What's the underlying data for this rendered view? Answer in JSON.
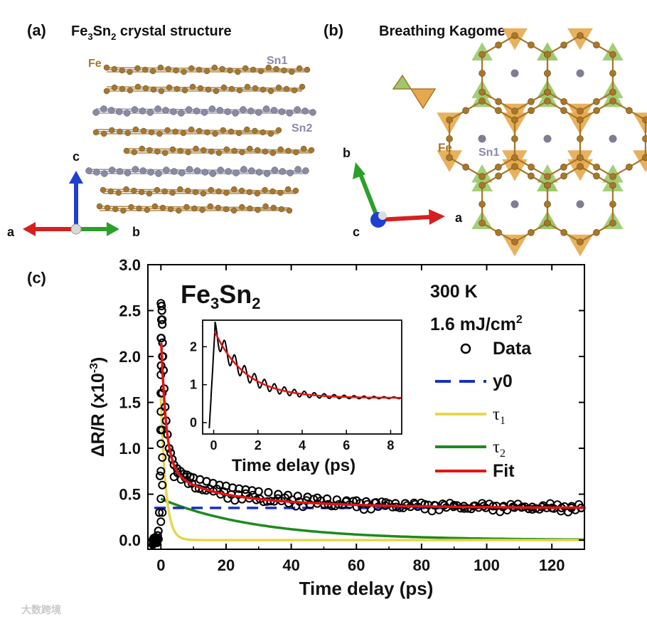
{
  "panels": {
    "a": {
      "tag": "(a)",
      "title_main": "Fe",
      "title_sub1": "3",
      "title_mid": "Sn",
      "title_sub2": "2",
      "title_tail": " crystal structure",
      "labels": {
        "fe": "Fe",
        "sn1": "Sn1",
        "sn2": "Sn2"
      },
      "axes": {
        "a": "a",
        "b": "b",
        "c": "c"
      }
    },
    "b": {
      "tag": "(b)",
      "title": "Breathing Kagome",
      "labels": {
        "fe": "Fe",
        "sn1": "Sn1"
      },
      "axes": {
        "a": "a",
        "b": "b",
        "c": "c"
      }
    },
    "c": {
      "tag": "(c)"
    }
  },
  "colors": {
    "fe": "#a8772a",
    "sn": "#8a8aa6",
    "data": "#000000",
    "y0": "#1a2fc0",
    "tau1": "#e6d84a",
    "tau2": "#1f8a1f",
    "fit": "#e01515",
    "green_tri": "#9bc96a",
    "orange_tri": "#e6a84d",
    "axis_red": "#d62020",
    "axis_green": "#2ca02c",
    "axis_blue": "#1f3fd0"
  },
  "chart_data": [
    {
      "type": "scatter",
      "title_main": "Fe",
      "title_sub1": "3",
      "title_mid": "Sn",
      "title_sub2": "2",
      "annotation_temp": "300 K",
      "annotation_fluence": "1.6 mJ/cm",
      "annotation_fluence_sup": "2",
      "xlabel": "Time delay (ps)",
      "ylabel": "ΔR/R (x10",
      "ylabel_sup": "-3",
      "ylabel_tail": ")",
      "xlim": [
        -4,
        130
      ],
      "ylim": [
        -0.1,
        3.0
      ],
      "xticks": [
        "0",
        "20",
        "40",
        "60",
        "80",
        "100",
        "120"
      ],
      "xtick_values": [
        0,
        20,
        40,
        60,
        80,
        100,
        120
      ],
      "yticks": [
        "0.0",
        "0.5",
        "1.0",
        "1.5",
        "2.0",
        "2.5",
        "3.0"
      ],
      "ytick_values": [
        0.0,
        0.5,
        1.0,
        1.5,
        2.0,
        2.5,
        3.0
      ],
      "legend": [
        {
          "name": "Data",
          "style": "circle"
        },
        {
          "name": "y0",
          "style": "dash"
        },
        {
          "name": "τ",
          "sub": "1",
          "style": "line"
        },
        {
          "name": "τ",
          "sub": "2",
          "style": "line"
        },
        {
          "name": "Fit",
          "style": "line"
        }
      ],
      "legend_position": "right",
      "model": {
        "y0": 0.35,
        "a1": 1.55,
        "tau1": 1.5,
        "a2": 0.45,
        "tau2": 30.0,
        "a3": 0.13,
        "tau3": 40.0
      },
      "series": [
        {
          "name": "Data",
          "x": [
            -2.5,
            -2.2,
            -2.0,
            -1.7,
            -1.4,
            -1.0,
            -0.8,
            -0.5,
            -0.3,
            -0.1,
            0.0,
            0.05,
            0.1,
            0.15,
            0.2,
            0.3,
            0.4,
            0.5,
            0.6,
            0.8,
            1.0,
            1.3,
            1.6,
            2.0,
            2.5,
            3.0,
            3.5,
            4.0,
            5,
            6,
            7,
            8,
            9,
            10,
            12,
            14,
            16,
            18,
            20,
            22,
            24,
            26,
            28,
            30,
            33,
            36,
            39,
            42,
            45,
            48,
            51,
            54,
            57,
            60,
            63,
            66,
            69,
            72,
            75,
            78,
            81,
            84,
            87,
            90,
            93,
            96,
            99,
            102,
            105,
            108,
            111,
            114,
            117,
            120,
            123,
            126,
            129
          ],
          "y": [
            0.0,
            0.02,
            -0.02,
            0.03,
            0.0,
            0.05,
            0.1,
            0.3,
            0.7,
            1.2,
            1.6,
            1.9,
            2.2,
            2.4,
            2.55,
            2.5,
            2.35,
            2.15,
            2.0,
            1.85,
            1.65,
            1.45,
            1.3,
            1.15,
            1.0,
            0.95,
            0.88,
            0.82,
            0.78,
            0.75,
            0.72,
            0.71,
            0.69,
            0.68,
            0.66,
            0.64,
            0.62,
            0.6,
            0.59,
            0.57,
            0.56,
            0.55,
            0.54,
            0.53,
            0.52,
            0.5,
            0.49,
            0.48,
            0.47,
            0.46,
            0.45,
            0.44,
            0.43,
            0.43,
            0.42,
            0.41,
            0.41,
            0.4,
            0.4,
            0.39,
            0.39,
            0.38,
            0.38,
            0.38,
            0.37,
            0.37,
            0.37,
            0.37,
            0.36,
            0.36,
            0.36,
            0.36,
            0.36,
            0.35,
            0.35,
            0.35,
            0.35
          ]
        }
      ]
    },
    {
      "type": "line",
      "role": "inset",
      "xlabel": "Time delay (ps)",
      "xlim": [
        -0.5,
        8.5
      ],
      "ylim": [
        -0.3,
        2.7
      ],
      "xticks": [
        "0",
        "2",
        "4",
        "6",
        "8"
      ],
      "xtick_values": [
        0,
        2,
        4,
        6,
        8
      ],
      "yticks": [
        "0",
        "1",
        "2"
      ],
      "ytick_values": [
        0,
        1,
        2
      ],
      "model": {
        "fit_base": 0.65,
        "fit_amp": 1.75,
        "fit_tau": 1.4,
        "osc_amp": 0.28,
        "osc_period": 0.45,
        "osc_tau": 3.2,
        "rise_start": -0.2,
        "peak_time": 0.05
      },
      "series": [
        {
          "name": "Data",
          "note": "oscillating trace"
        },
        {
          "name": "Fit",
          "note": "smooth decay"
        }
      ]
    }
  ],
  "watermark": "大数跨境"
}
